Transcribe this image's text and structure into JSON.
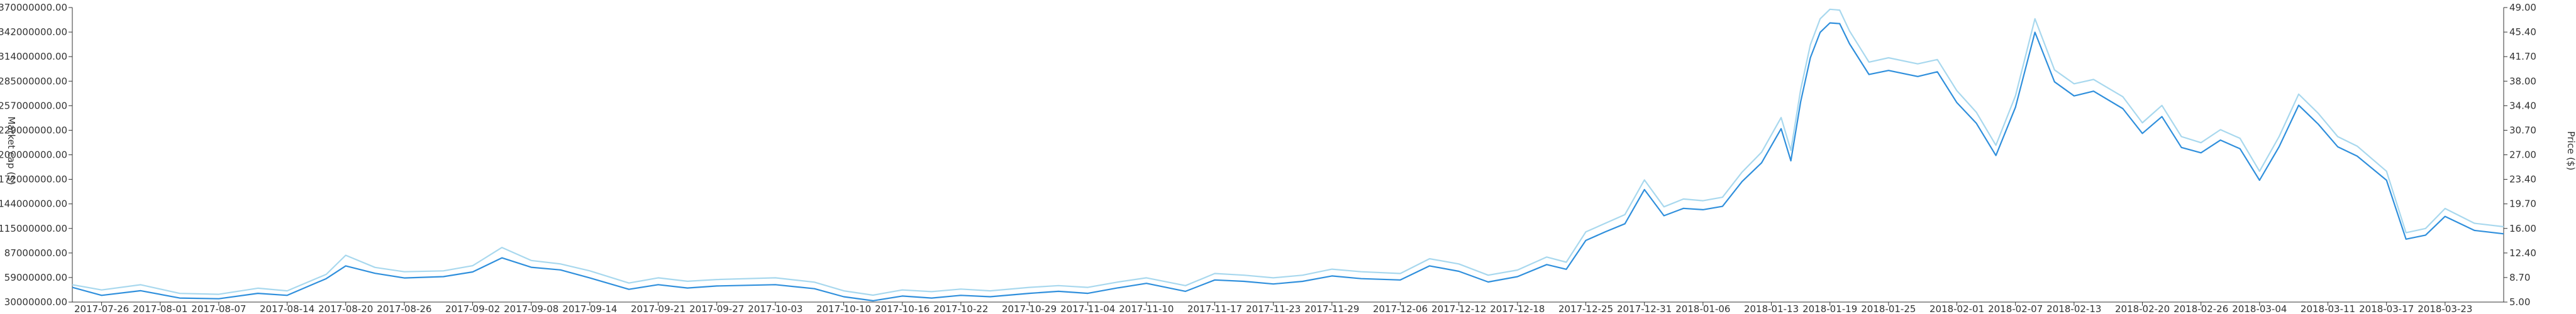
{
  "chart_data": {
    "type": "line",
    "title": "",
    "ylabel_left": "Market cap ($)",
    "ylabel_right": "Price ($)",
    "grid": false,
    "x_ticks": [
      "2017-07-26",
      "2017-08-01",
      "2017-08-07",
      "2017-08-14",
      "2017-08-20",
      "2017-08-26",
      "2017-09-02",
      "2017-09-08",
      "2017-09-14",
      "2017-09-21",
      "2017-09-27",
      "2017-10-03",
      "2017-10-10",
      "2017-10-16",
      "2017-10-22",
      "2017-10-29",
      "2017-11-04",
      "2017-11-10",
      "2017-11-17",
      "2017-11-23",
      "2017-11-29",
      "2017-12-06",
      "2017-12-12",
      "2017-12-18",
      "2017-12-25",
      "2017-12-31",
      "2018-01-06",
      "2018-01-13",
      "2018-01-19",
      "2018-01-25",
      "2018-02-01",
      "2018-02-07",
      "2018-02-13",
      "2018-02-20",
      "2018-02-26",
      "2018-03-04",
      "2018-03-11",
      "2018-03-17",
      "2018-03-23"
    ],
    "y_left_ticks": [
      "30000000.00",
      "59000000.00",
      "87000000.00",
      "115000000.00",
      "144000000.00",
      "172000000.00",
      "200000000.00",
      "229000000.00",
      "257000000.00",
      "285000000.00",
      "314000000.00",
      "342000000.00",
      "370000000.00"
    ],
    "y_right_ticks": [
      "5.00",
      "8.70",
      "12.40",
      "16.00",
      "19.70",
      "23.40",
      "27.00",
      "30.70",
      "34.40",
      "38.00",
      "41.70",
      "45.40",
      "49.00"
    ],
    "ylim_left": [
      30000000,
      370000000
    ],
    "ylim_right": [
      5,
      49
    ],
    "x_range": [
      "2017-07-23",
      "2018-03-29"
    ],
    "series": [
      {
        "name": "Market cap",
        "axis": "left",
        "color": "#a8d8ee",
        "points": [
          [
            "2017-07-23",
            50000000
          ],
          [
            "2017-07-26",
            44000000
          ],
          [
            "2017-07-30",
            50000000
          ],
          [
            "2017-08-03",
            40000000
          ],
          [
            "2017-08-07",
            39000000
          ],
          [
            "2017-08-11",
            46000000
          ],
          [
            "2017-08-14",
            43000000
          ],
          [
            "2017-08-18",
            62000000
          ],
          [
            "2017-08-20",
            84000000
          ],
          [
            "2017-08-23",
            70000000
          ],
          [
            "2017-08-26",
            65000000
          ],
          [
            "2017-08-30",
            66000000
          ],
          [
            "2017-09-02",
            72000000
          ],
          [
            "2017-09-05",
            93000000
          ],
          [
            "2017-09-08",
            78000000
          ],
          [
            "2017-09-11",
            74000000
          ],
          [
            "2017-09-14",
            66000000
          ],
          [
            "2017-09-18",
            52000000
          ],
          [
            "2017-09-21",
            58000000
          ],
          [
            "2017-09-24",
            54000000
          ],
          [
            "2017-09-27",
            56000000
          ],
          [
            "2017-10-03",
            58000000
          ],
          [
            "2017-10-07",
            53000000
          ],
          [
            "2017-10-10",
            43000000
          ],
          [
            "2017-10-13",
            38000000
          ],
          [
            "2017-10-16",
            44000000
          ],
          [
            "2017-10-19",
            42000000
          ],
          [
            "2017-10-22",
            45000000
          ],
          [
            "2017-10-25",
            43000000
          ],
          [
            "2017-10-29",
            47000000
          ],
          [
            "2017-11-01",
            49000000
          ],
          [
            "2017-11-04",
            47000000
          ],
          [
            "2017-11-07",
            53000000
          ],
          [
            "2017-11-10",
            58000000
          ],
          [
            "2017-11-14",
            49000000
          ],
          [
            "2017-11-17",
            63000000
          ],
          [
            "2017-11-20",
            61000000
          ],
          [
            "2017-11-23",
            58000000
          ],
          [
            "2017-11-26",
            61000000
          ],
          [
            "2017-11-29",
            68000000
          ],
          [
            "2017-12-02",
            65000000
          ],
          [
            "2017-12-06",
            63000000
          ],
          [
            "2017-12-09",
            80000000
          ],
          [
            "2017-12-12",
            74000000
          ],
          [
            "2017-12-15",
            61000000
          ],
          [
            "2017-12-18",
            67000000
          ],
          [
            "2017-12-21",
            82000000
          ],
          [
            "2017-12-23",
            76000000
          ],
          [
            "2017-12-25",
            111000000
          ],
          [
            "2017-12-27",
            121000000
          ],
          [
            "2017-12-29",
            131000000
          ],
          [
            "2017-12-31",
            171000000
          ],
          [
            "2018-01-02",
            140000000
          ],
          [
            "2018-01-04",
            149000000
          ],
          [
            "2018-01-06",
            147000000
          ],
          [
            "2018-01-08",
            151000000
          ],
          [
            "2018-01-10",
            180000000
          ],
          [
            "2018-01-12",
            203000000
          ],
          [
            "2018-01-14",
            243000000
          ],
          [
            "2018-01-15",
            205000000
          ],
          [
            "2018-01-16",
            275000000
          ],
          [
            "2018-01-17",
            327000000
          ],
          [
            "2018-01-18",
            357000000
          ],
          [
            "2018-01-19",
            368000000
          ],
          [
            "2018-01-20",
            367000000
          ],
          [
            "2018-01-21",
            343000000
          ],
          [
            "2018-01-23",
            307000000
          ],
          [
            "2018-01-25",
            312000000
          ],
          [
            "2018-01-28",
            305000000
          ],
          [
            "2018-01-30",
            310000000
          ],
          [
            "2018-02-01",
            274000000
          ],
          [
            "2018-02-03",
            249000000
          ],
          [
            "2018-02-05",
            211000000
          ],
          [
            "2018-02-07",
            268000000
          ],
          [
            "2018-02-09",
            357000000
          ],
          [
            "2018-02-11",
            298000000
          ],
          [
            "2018-02-13",
            282000000
          ],
          [
            "2018-02-15",
            287000000
          ],
          [
            "2018-02-18",
            267000000
          ],
          [
            "2018-02-20",
            237000000
          ],
          [
            "2018-02-22",
            257000000
          ],
          [
            "2018-02-24",
            221000000
          ],
          [
            "2018-02-26",
            214000000
          ],
          [
            "2018-02-28",
            229000000
          ],
          [
            "2018-03-02",
            219000000
          ],
          [
            "2018-03-04",
            181000000
          ],
          [
            "2018-03-06",
            221000000
          ],
          [
            "2018-03-08",
            270000000
          ],
          [
            "2018-03-10",
            248000000
          ],
          [
            "2018-03-12",
            221000000
          ],
          [
            "2018-03-14",
            210000000
          ],
          [
            "2018-03-17",
            181000000
          ],
          [
            "2018-03-19",
            110000000
          ],
          [
            "2018-03-21",
            115000000
          ],
          [
            "2018-03-23",
            138000000
          ],
          [
            "2018-03-26",
            121000000
          ],
          [
            "2018-03-29",
            117000000
          ]
        ]
      },
      {
        "name": "Price",
        "axis": "right",
        "color": "#2f8fdc",
        "points": [
          [
            "2017-07-23",
            7.2
          ],
          [
            "2017-07-26",
            6.0
          ],
          [
            "2017-07-30",
            6.7
          ],
          [
            "2017-08-03",
            5.6
          ],
          [
            "2017-08-07",
            5.5
          ],
          [
            "2017-08-11",
            6.3
          ],
          [
            "2017-08-14",
            6.0
          ],
          [
            "2017-08-18",
            8.5
          ],
          [
            "2017-08-20",
            10.4
          ],
          [
            "2017-08-23",
            9.3
          ],
          [
            "2017-08-26",
            8.6
          ],
          [
            "2017-08-30",
            8.8
          ],
          [
            "2017-09-02",
            9.5
          ],
          [
            "2017-09-05",
            11.6
          ],
          [
            "2017-09-08",
            10.2
          ],
          [
            "2017-09-11",
            9.8
          ],
          [
            "2017-09-14",
            8.6
          ],
          [
            "2017-09-18",
            6.9
          ],
          [
            "2017-09-21",
            7.6
          ],
          [
            "2017-09-24",
            7.1
          ],
          [
            "2017-09-27",
            7.4
          ],
          [
            "2017-10-03",
            7.6
          ],
          [
            "2017-10-07",
            7.0
          ],
          [
            "2017-10-10",
            5.8
          ],
          [
            "2017-10-13",
            5.2
          ],
          [
            "2017-10-16",
            5.9
          ],
          [
            "2017-10-19",
            5.6
          ],
          [
            "2017-10-22",
            6.0
          ],
          [
            "2017-10-25",
            5.8
          ],
          [
            "2017-10-29",
            6.3
          ],
          [
            "2017-11-01",
            6.6
          ],
          [
            "2017-11-04",
            6.3
          ],
          [
            "2017-11-07",
            7.1
          ],
          [
            "2017-11-10",
            7.8
          ],
          [
            "2017-11-14",
            6.6
          ],
          [
            "2017-11-17",
            8.3
          ],
          [
            "2017-11-20",
            8.1
          ],
          [
            "2017-11-23",
            7.7
          ],
          [
            "2017-11-26",
            8.1
          ],
          [
            "2017-11-29",
            8.9
          ],
          [
            "2017-12-02",
            8.5
          ],
          [
            "2017-12-06",
            8.3
          ],
          [
            "2017-12-09",
            10.4
          ],
          [
            "2017-12-12",
            9.6
          ],
          [
            "2017-12-15",
            8.0
          ],
          [
            "2017-12-18",
            8.8
          ],
          [
            "2017-12-21",
            10.6
          ],
          [
            "2017-12-23",
            9.9
          ],
          [
            "2017-12-25",
            14.2
          ],
          [
            "2017-12-27",
            15.5
          ],
          [
            "2017-12-29",
            16.7
          ],
          [
            "2017-12-31",
            21.8
          ],
          [
            "2018-01-02",
            17.9
          ],
          [
            "2018-01-04",
            19.0
          ],
          [
            "2018-01-06",
            18.8
          ],
          [
            "2018-01-08",
            19.3
          ],
          [
            "2018-01-10",
            23.0
          ],
          [
            "2018-01-12",
            25.8
          ],
          [
            "2018-01-14",
            30.9
          ],
          [
            "2018-01-15",
            26.1
          ],
          [
            "2018-01-16",
            34.9
          ],
          [
            "2018-01-17",
            41.5
          ],
          [
            "2018-01-18",
            45.3
          ],
          [
            "2018-01-19",
            46.7
          ],
          [
            "2018-01-20",
            46.6
          ],
          [
            "2018-01-21",
            43.6
          ],
          [
            "2018-01-23",
            39.0
          ],
          [
            "2018-01-25",
            39.6
          ],
          [
            "2018-01-28",
            38.7
          ],
          [
            "2018-01-30",
            39.4
          ],
          [
            "2018-02-01",
            34.8
          ],
          [
            "2018-02-03",
            31.7
          ],
          [
            "2018-02-05",
            26.9
          ],
          [
            "2018-02-07",
            34.1
          ],
          [
            "2018-02-09",
            45.3
          ],
          [
            "2018-02-11",
            37.9
          ],
          [
            "2018-02-13",
            35.8
          ],
          [
            "2018-02-15",
            36.5
          ],
          [
            "2018-02-18",
            33.9
          ],
          [
            "2018-02-20",
            30.2
          ],
          [
            "2018-02-22",
            32.7
          ],
          [
            "2018-02-24",
            28.1
          ],
          [
            "2018-02-26",
            27.3
          ],
          [
            "2018-02-28",
            29.2
          ],
          [
            "2018-03-02",
            27.9
          ],
          [
            "2018-03-04",
            23.2
          ],
          [
            "2018-03-06",
            28.2
          ],
          [
            "2018-03-08",
            34.4
          ],
          [
            "2018-03-10",
            31.6
          ],
          [
            "2018-03-12",
            28.2
          ],
          [
            "2018-03-14",
            26.8
          ],
          [
            "2018-03-17",
            23.2
          ],
          [
            "2018-03-19",
            14.4
          ],
          [
            "2018-03-21",
            15.0
          ],
          [
            "2018-03-23",
            17.8
          ],
          [
            "2018-03-26",
            15.7
          ],
          [
            "2018-03-29",
            15.2
          ]
        ]
      }
    ]
  }
}
